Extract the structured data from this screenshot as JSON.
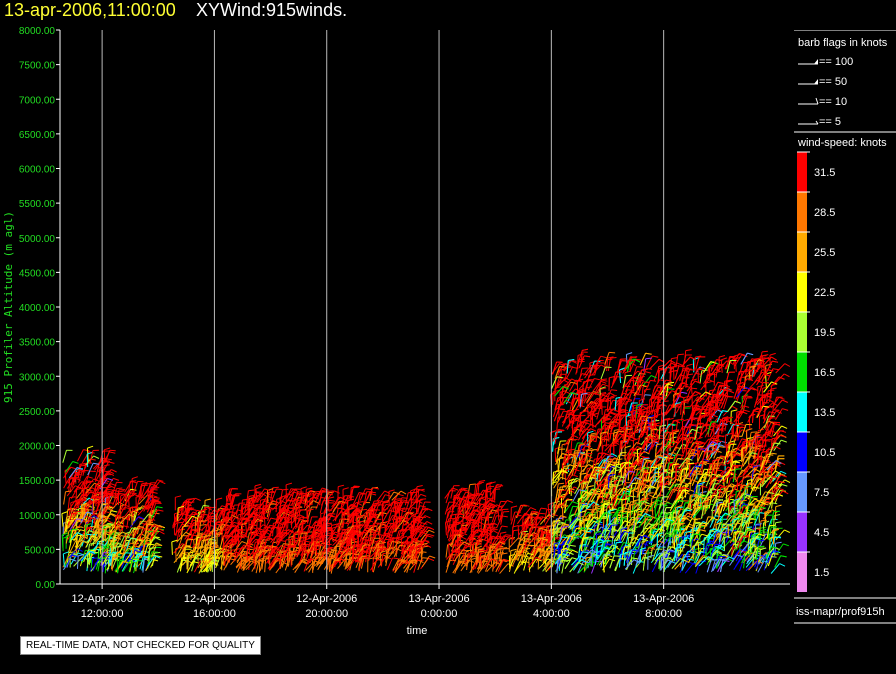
{
  "header": {
    "date_label": "13-apr-2006,11:00:00",
    "plot_name": "XYWind:915winds."
  },
  "footer": {
    "disclaimer": "REAL-TIME DATA, NOT CHECKED FOR QUALITY",
    "source_label": "iss-mapr/prof915h"
  },
  "legend": {
    "barb_title": "barb flags in knots",
    "barb_items": [
      "== 100",
      "== 50",
      "== 10",
      "== 5"
    ],
    "speed_title": "wind-speed: knots",
    "speed_bins": [
      {
        "label": "31.5",
        "color": "#ff0000"
      },
      {
        "label": "28.5",
        "color": "#ff7700"
      },
      {
        "label": "25.5",
        "color": "#ffaa00"
      },
      {
        "label": "22.5",
        "color": "#ffff00"
      },
      {
        "label": "19.5",
        "color": "#aaff33"
      },
      {
        "label": "16.5",
        "color": "#00dd00"
      },
      {
        "label": "13.5",
        "color": "#00ffff"
      },
      {
        "label": "10.5",
        "color": "#0000ff"
      },
      {
        "label": "7.5",
        "color": "#6699ff"
      },
      {
        "label": "4.5",
        "color": "#9933ff"
      },
      {
        "label": "1.5",
        "color": "#ee88ee"
      }
    ]
  },
  "chart_data": {
    "type": "scatter",
    "ylabel": "915 Profiler Altitude (m agl)",
    "xlabel": "time",
    "ylim": [
      0,
      8000
    ],
    "yticks": [
      "0.00",
      "500.00",
      "1000.00",
      "1500.00",
      "2000.00",
      "2500.00",
      "3000.00",
      "3500.00",
      "4000.00",
      "4500.00",
      "5000.00",
      "5500.00",
      "6000.00",
      "6500.00",
      "7000.00",
      "7500.00",
      "8000.00"
    ],
    "xlim_hours": [
      10.5,
      36.5
    ],
    "xticks": [
      {
        "date": "12-Apr-2006",
        "time": "12:00:00",
        "hour": 12
      },
      {
        "date": "12-Apr-2006",
        "time": "16:00:00",
        "hour": 16
      },
      {
        "date": "12-Apr-2006",
        "time": "20:00:00",
        "hour": 20
      },
      {
        "date": "13-Apr-2006",
        "time": "0:00:00",
        "hour": 24
      },
      {
        "date": "13-Apr-2006",
        "time": "4:00:00",
        "hour": 28
      },
      {
        "date": "13-Apr-2006",
        "time": "8:00:00",
        "hour": 32
      }
    ],
    "grid": "vertical",
    "data_regions": [
      {
        "t_start": 10.6,
        "t_end": 12.3,
        "alt_bottom": 150,
        "alt_top": 1800,
        "speed_low": 5,
        "speed_high": 32
      },
      {
        "t_start": 12.3,
        "t_end": 13.8,
        "alt_bottom": 150,
        "alt_top": 1350,
        "speed_low": 8,
        "speed_high": 32
      },
      {
        "t_start": 14.5,
        "t_end": 16.3,
        "alt_bottom": 150,
        "alt_top": 1100,
        "speed_low": 18,
        "speed_high": 32
      },
      {
        "t_start": 16.3,
        "t_end": 20.0,
        "alt_bottom": 150,
        "alt_top": 1250,
        "speed_low": 28,
        "speed_high": 32
      },
      {
        "t_start": 20.0,
        "t_end": 23.4,
        "alt_bottom": 150,
        "alt_top": 1250,
        "speed_low": 28,
        "speed_high": 32
      },
      {
        "t_start": 24.2,
        "t_end": 26.2,
        "alt_bottom": 150,
        "alt_top": 1300,
        "speed_low": 28,
        "speed_high": 32
      },
      {
        "t_start": 26.5,
        "t_end": 28.0,
        "alt_bottom": 150,
        "alt_top": 1000,
        "speed_low": 20,
        "speed_high": 32
      },
      {
        "t_start": 28.0,
        "t_end": 36.0,
        "alt_bottom": 150,
        "alt_top": 3200,
        "speed_low": 5,
        "speed_high": 32
      }
    ]
  }
}
